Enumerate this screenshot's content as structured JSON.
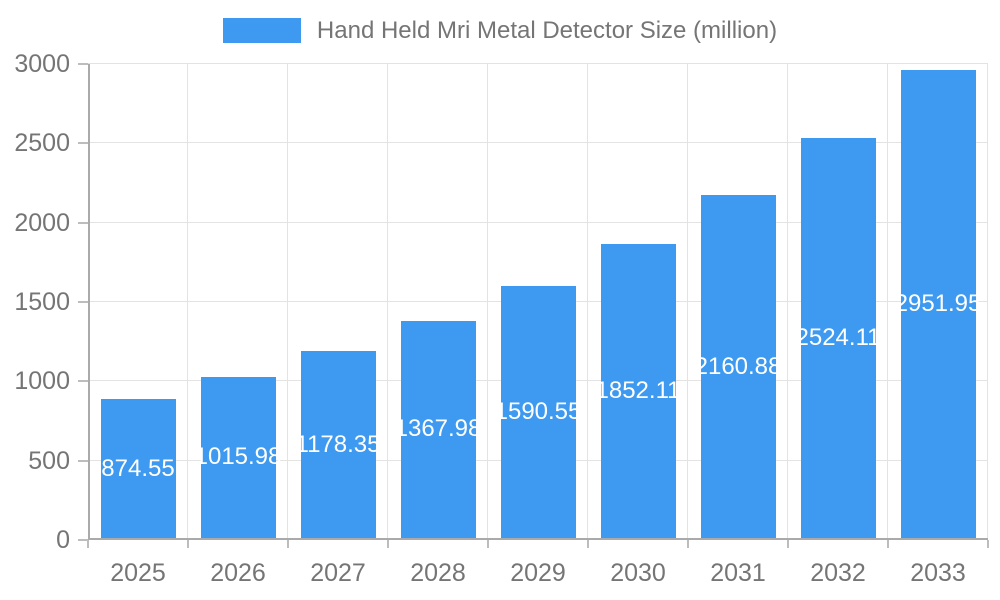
{
  "legend": {
    "label": "Hand Held Mri Metal Detector Size (million)"
  },
  "chart_data": {
    "type": "bar",
    "title": "Hand Held Mri Metal Detector Size (million)",
    "categories": [
      "2025",
      "2026",
      "2027",
      "2028",
      "2029",
      "2030",
      "2031",
      "2032",
      "2033"
    ],
    "values": [
      874.55,
      1015.98,
      1178.35,
      1367.98,
      1590.55,
      1852.11,
      2160.88,
      2524.11,
      2951.95
    ],
    "value_labels": [
      "874.55",
      "1015.98",
      "1178.35",
      "1367.98",
      "1590.55",
      "1852.11",
      "2160.88",
      "2524.11",
      "2951.95"
    ],
    "xlabel": "",
    "ylabel": "",
    "ylim": [
      0,
      3000
    ],
    "yticks": [
      0,
      500,
      1000,
      1500,
      2000,
      2500,
      3000
    ],
    "grid": true,
    "legend_position": "top-center",
    "colors": {
      "bar": "#3e9af0",
      "grid": "#e3e3e3",
      "axis": "#aaaaaa",
      "tick": "#bdbdbd",
      "axis_text": "#757575",
      "value_text": "#ffffff",
      "background": "#ffffff"
    }
  }
}
